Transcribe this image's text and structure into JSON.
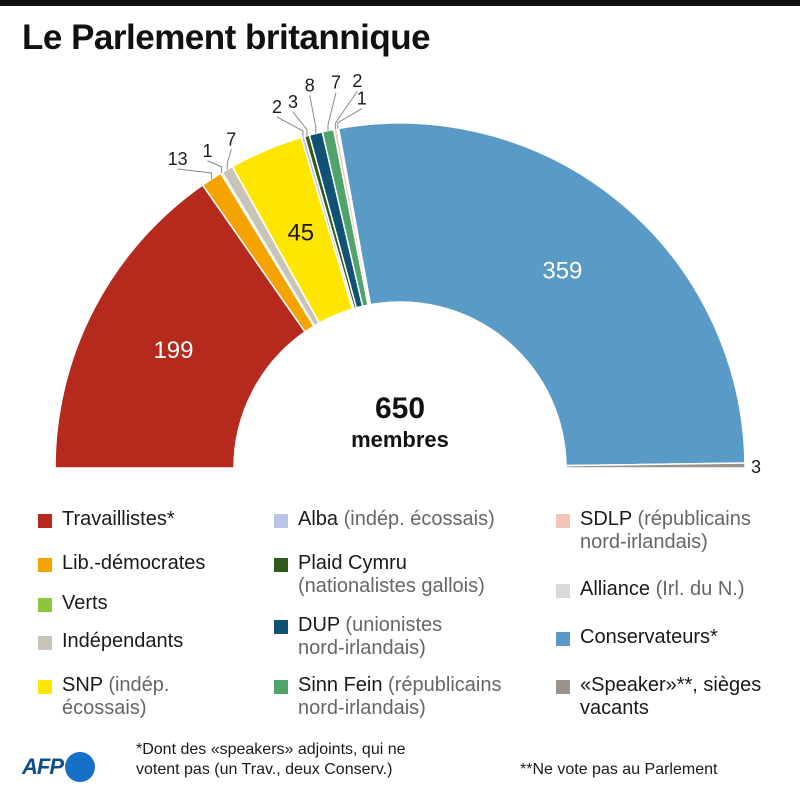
{
  "title": "Le Parlement britannique",
  "center": {
    "total": "650",
    "label": "membres"
  },
  "chart_data": {
    "type": "pie",
    "subtype": "semicircle-parliament",
    "total_seats": 650,
    "slices": [
      {
        "name": "Travaillistes*",
        "value": 199,
        "label": "199",
        "color": "#b52a1d"
      },
      {
        "name": "Lib.-démocrates",
        "value": 13,
        "label": "13",
        "color": "#f5a300"
      },
      {
        "name": "Verts",
        "value": 1,
        "label": "1",
        "color": "#8cc63f"
      },
      {
        "name": "Indépendants",
        "value": 7,
        "label": "7",
        "color": "#c9c4b8"
      },
      {
        "name": "SNP",
        "value": 45,
        "label": "45",
        "color": "#ffe600"
      },
      {
        "name": "Alba",
        "value": 2,
        "label": "2",
        "color": "#b9c4e6"
      },
      {
        "name": "Plaid Cymru",
        "value": 3,
        "label": "3",
        "color": "#2e5a1c"
      },
      {
        "name": "DUP",
        "value": 8,
        "label": "8",
        "color": "#0f5274"
      },
      {
        "name": "Sinn Fein",
        "value": 7,
        "label": "7",
        "color": "#4fa36b"
      },
      {
        "name": "SDLP",
        "value": 2,
        "label": "2",
        "color": "#f3c5b8"
      },
      {
        "name": "Alliance",
        "value": 1,
        "label": "1",
        "color": "#d9d9d9"
      },
      {
        "name": "Conservateurs*",
        "value": 359,
        "label": "359",
        "color": "#5a9ac6"
      },
      {
        "name": "«Speaker»**, sièges vacants",
        "value": 3,
        "label": "3",
        "color": "#9a938c"
      }
    ]
  },
  "legend": {
    "col1": [
      {
        "name": "Travaillistes*",
        "note": "",
        "color": "#b52a1d"
      },
      {
        "name": "Lib.-démocrates",
        "note": "",
        "color": "#f5a300"
      },
      {
        "name": "Verts",
        "note": "",
        "color": "#8cc63f"
      },
      {
        "name": "Indépendants",
        "note": "",
        "color": "#c9c4b8"
      },
      {
        "name": "SNP",
        "note": " (indép.",
        "note2": "écossais)",
        "color": "#ffe600"
      }
    ],
    "col2": [
      {
        "name": "Alba",
        "note": " (indép. écossais)",
        "color": "#b9c4e6"
      },
      {
        "name": "Plaid Cymru",
        "note": "",
        "note2": "(nationalistes gallois)",
        "color": "#2e5a1c"
      },
      {
        "name": "DUP",
        "note": " (unionistes",
        "note2": "nord-irlandais)",
        "color": "#0f5274"
      },
      {
        "name": "Sinn Fein",
        "note": " (républicains",
        "note2": "nord-irlandais)",
        "color": "#4fa36b"
      }
    ],
    "col3": [
      {
        "name": "SDLP",
        "note": " (républicains",
        "note2": "nord-irlandais)",
        "color": "#f3c5b8"
      },
      {
        "name": "Alliance",
        "note": " (Irl. du N.)",
        "color": "#d9d9d9"
      },
      {
        "name": "Conservateurs*",
        "note": "",
        "color": "#5a9ac6"
      },
      {
        "name": "«Speaker»**, sièges",
        "note": "",
        "line2": "vacants",
        "color": "#9a938c"
      }
    ]
  },
  "footnotes": {
    "note1_line1": "*Dont des «speakers» adjoints, qui ne",
    "note1_line2": "votent pas (un Trav., deux Conserv.)",
    "note2": "**Ne vote pas au Parlement"
  },
  "logo": {
    "text": "AFP"
  }
}
